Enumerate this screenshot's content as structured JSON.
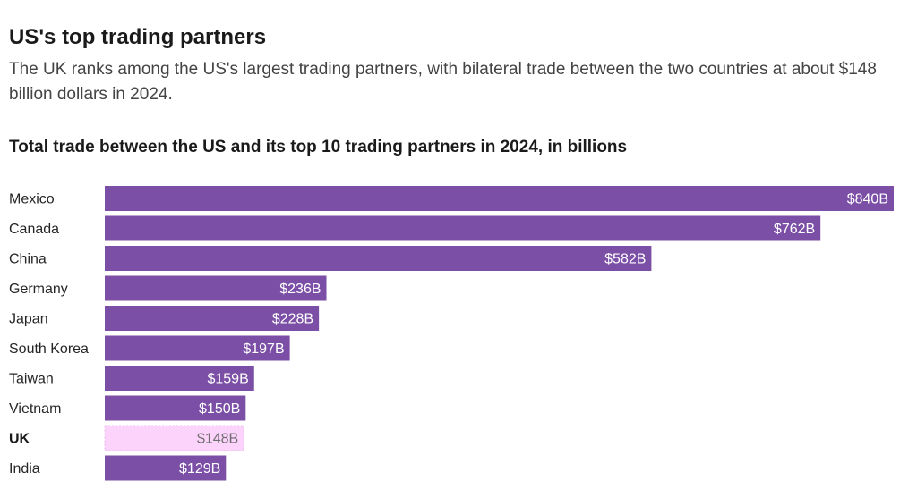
{
  "header": {
    "title": "US's top trading partners",
    "subtitle": "The UK ranks among the US's largest trading partners, with bilateral trade between the two countries at about $148 billion dollars in 2024."
  },
  "colors": {
    "bar": "#7b4fa6",
    "highlight_bar": "#fbd3fb",
    "value_text": "#ffffff",
    "highlight_value_text": "#6e6e6e"
  },
  "chart_data": {
    "type": "bar",
    "orientation": "horizontal",
    "title": "Total trade between the US and its top 10 trading partners in 2024, in billions",
    "categories": [
      "Mexico",
      "Canada",
      "China",
      "Germany",
      "Japan",
      "South Korea",
      "Taiwan",
      "Vietnam",
      "UK",
      "India"
    ],
    "values": [
      840,
      762,
      582,
      236,
      228,
      197,
      159,
      150,
      148,
      129
    ],
    "value_labels": [
      "$840B",
      "$762B",
      "$582B",
      "$236B",
      "$228B",
      "$197B",
      "$159B",
      "$150B",
      "$148B",
      "$129B"
    ],
    "highlight": "UK",
    "xlim": [
      0,
      840
    ],
    "grid": false,
    "legend": "none"
  }
}
